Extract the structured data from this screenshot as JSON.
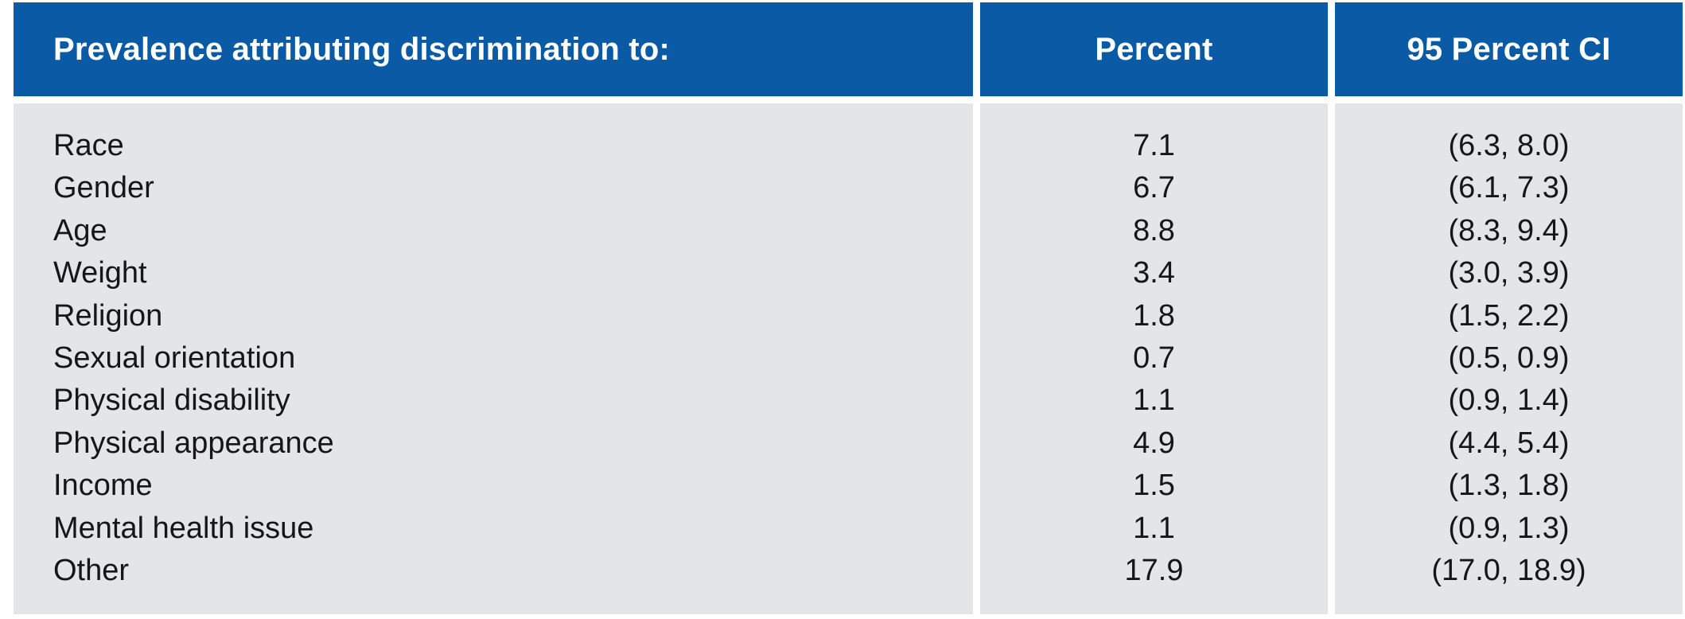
{
  "table": {
    "header": {
      "attribute_col": "Prevalence attributing discrimination to:",
      "percent_col": "Percent",
      "ci_col": "95 Percent CI"
    },
    "rows": [
      {
        "label": "Race",
        "percent": "7.1",
        "ci": "(6.3, 8.0)"
      },
      {
        "label": "Gender",
        "percent": "6.7",
        "ci": "(6.1, 7.3)"
      },
      {
        "label": "Age",
        "percent": "8.8",
        "ci": "(8.3, 9.4)"
      },
      {
        "label": "Weight",
        "percent": "3.4",
        "ci": "(3.0, 3.9)"
      },
      {
        "label": "Religion",
        "percent": "1.8",
        "ci": "(1.5, 2.2)"
      },
      {
        "label": "Sexual orientation",
        "percent": "0.7",
        "ci": "(0.5, 0.9)"
      },
      {
        "label": "Physical disability",
        "percent": "1.1",
        "ci": "(0.9, 1.4)"
      },
      {
        "label": "Physical appearance",
        "percent": "4.9",
        "ci": "(4.4, 5.4)"
      },
      {
        "label": "Income",
        "percent": "1.5",
        "ci": "(1.3, 1.8)"
      },
      {
        "label": "Mental health issue",
        "percent": "1.1",
        "ci": "(0.9, 1.3)"
      },
      {
        "label": "Other",
        "percent": "17.9",
        "ci": "(17.0, 18.9)"
      }
    ]
  },
  "colors": {
    "header_bg": "#0b5aa5",
    "header_text": "#ffffff",
    "body_bg": "#e4e5e7",
    "body_text": "#161616",
    "page_bg": "#ffffff"
  },
  "chart_data": {
    "type": "table",
    "title": "Prevalence attributing discrimination to:",
    "columns": [
      "Prevalence attributing discrimination to:",
      "Percent",
      "95 Percent CI"
    ],
    "rows": [
      [
        "Race",
        7.1,
        "(6.3, 8.0)"
      ],
      [
        "Gender",
        6.7,
        "(6.1, 7.3)"
      ],
      [
        "Age",
        8.8,
        "(8.3, 9.4)"
      ],
      [
        "Weight",
        3.4,
        "(3.0, 3.9)"
      ],
      [
        "Religion",
        1.8,
        "(1.5, 2.2)"
      ],
      [
        "Sexual orientation",
        0.7,
        "(0.5, 0.9)"
      ],
      [
        "Physical disability",
        1.1,
        "(0.9, 1.4)"
      ],
      [
        "Physical appearance",
        4.9,
        "(4.4, 5.4)"
      ],
      [
        "Income",
        1.5,
        "(1.3, 1.8)"
      ],
      [
        "Mental health issue",
        1.1,
        "(0.9, 1.3)"
      ],
      [
        "Other",
        17.9,
        "(17.0, 18.9)"
      ]
    ],
    "layout": {
      "header_background": "#0b5aa5",
      "body_background": "#e4e5e7",
      "grid": "off",
      "column_alignment": [
        "left",
        "center",
        "center"
      ]
    }
  }
}
